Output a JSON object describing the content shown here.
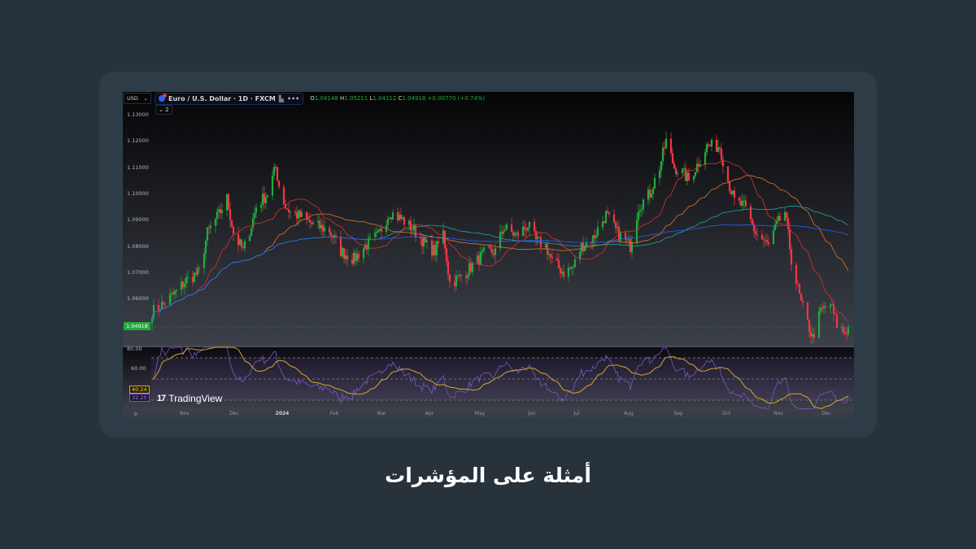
{
  "header": {
    "currency": "USD",
    "symbol": "Euro / U.S. Dollar · 1D · FXCM",
    "open_label": "O",
    "open": "1.04148",
    "high_label": "H",
    "high": "1.05211",
    "low_label": "L",
    "low": "1.04112",
    "close_label": "C",
    "close": "1.04918",
    "change": "+0.00770 (+0.74%)",
    "collapse_count": "2"
  },
  "price_axis": [
    "1.13000",
    "1.12000",
    "1.11000",
    "1.10000",
    "1.09000",
    "1.08000",
    "1.07000",
    "1.06000"
  ],
  "current_price": "1.04918",
  "rsi_axis": [
    "80.00",
    "60.00"
  ],
  "rsi_value": "40.24",
  "rsi_ma_value": "32.20",
  "time_axis": [
    "Nov",
    "Dec",
    "2024",
    "Feb",
    "Mar",
    "Apr",
    "May",
    "Jun",
    "Jul",
    "Aug",
    "Sep",
    "Oct",
    "Nov",
    "Dec"
  ],
  "watermark": "TradingView",
  "caption": "أمثلة على المؤشرات",
  "colors": {
    "up": "#22ab3c",
    "down": "#f23645",
    "ma1": "#e0312e",
    "ma2": "#e0772c",
    "ma3": "#26a69a",
    "ma4": "#2962ff",
    "rsi": "#7e57c2",
    "rsi_ma": "#d4a72c"
  },
  "chart_data": {
    "type": "candlestick",
    "ylim": [
      1.04,
      1.13
    ],
    "closes": [
      [
        "2023-10-12",
        1.055
      ],
      [
        "2023-10-19",
        1.058
      ],
      [
        "2023-10-26",
        1.062
      ],
      [
        "2023-11-02",
        1.067
      ],
      [
        "2023-11-10",
        1.07
      ],
      [
        "2023-11-15",
        1.085
      ],
      [
        "2023-11-22",
        1.092
      ],
      [
        "2023-11-27",
        1.098
      ],
      [
        "2023-12-01",
        1.085
      ],
      [
        "2023-12-07",
        1.078
      ],
      [
        "2023-12-12",
        1.088
      ],
      [
        "2023-12-15",
        1.095
      ],
      [
        "2023-12-22",
        1.1
      ],
      [
        "2023-12-27",
        1.11
      ],
      [
        "2023-12-29",
        1.103
      ],
      [
        "2024-01-02",
        1.095
      ],
      [
        "2024-01-05",
        1.093
      ],
      [
        "2024-01-12",
        1.091
      ],
      [
        "2024-01-19",
        1.088
      ],
      [
        "2024-01-29",
        1.086
      ],
      [
        "2024-02-05",
        1.078
      ],
      [
        "2024-02-13",
        1.075
      ],
      [
        "2024-02-20",
        1.08
      ],
      [
        "2024-02-28",
        1.084
      ],
      [
        "2024-03-06",
        1.093
      ],
      [
        "2024-03-14",
        1.09
      ],
      [
        "2024-03-21",
        1.086
      ],
      [
        "2024-03-29",
        1.08
      ],
      [
        "2024-04-03",
        1.078
      ],
      [
        "2024-04-08",
        1.085
      ],
      [
        "2024-04-12",
        1.066
      ],
      [
        "2024-04-18",
        1.068
      ],
      [
        "2024-04-25",
        1.072
      ],
      [
        "2024-05-03",
        1.077
      ],
      [
        "2024-05-10",
        1.078
      ],
      [
        "2024-05-15",
        1.087
      ],
      [
        "2024-05-23",
        1.084
      ],
      [
        "2024-05-30",
        1.088
      ],
      [
        "2024-06-04",
        1.082
      ],
      [
        "2024-06-10",
        1.08
      ],
      [
        "2024-06-14",
        1.074
      ],
      [
        "2024-06-21",
        1.07
      ],
      [
        "2024-06-27",
        1.072
      ],
      [
        "2024-07-02",
        1.08
      ],
      [
        "2024-07-09",
        1.083
      ],
      [
        "2024-07-17",
        1.092
      ],
      [
        "2024-07-24",
        1.085
      ],
      [
        "2024-08-01",
        1.08
      ],
      [
        "2024-08-06",
        1.095
      ],
      [
        "2024-08-13",
        1.1
      ],
      [
        "2024-08-19",
        1.11
      ],
      [
        "2024-08-23",
        1.12
      ],
      [
        "2024-08-28",
        1.11
      ],
      [
        "2024-09-02",
        1.108
      ],
      [
        "2024-09-06",
        1.105
      ],
      [
        "2024-09-12",
        1.112
      ],
      [
        "2024-09-17",
        1.118
      ],
      [
        "2024-09-25",
        1.118
      ],
      [
        "2024-09-30",
        1.105
      ],
      [
        "2024-10-04",
        1.097
      ],
      [
        "2024-10-10",
        1.095
      ],
      [
        "2024-10-17",
        1.085
      ],
      [
        "2024-10-25",
        1.08
      ],
      [
        "2024-10-30",
        1.088
      ],
      [
        "2024-11-04",
        1.093
      ],
      [
        "2024-11-08",
        1.075
      ],
      [
        "2024-11-14",
        1.058
      ],
      [
        "2024-11-21",
        1.045
      ],
      [
        "2024-11-26",
        1.055
      ],
      [
        "2024-12-02",
        1.058
      ],
      [
        "2024-12-06",
        1.05
      ],
      [
        "2024-12-11",
        1.047
      ],
      [
        "2024-12-13",
        1.049
      ]
    ],
    "moving_averages": [
      20,
      50,
      100,
      200
    ],
    "rsi": {
      "period": 14,
      "levels": [
        70,
        50,
        30
      ],
      "ylim": [
        20,
        80
      ]
    }
  }
}
